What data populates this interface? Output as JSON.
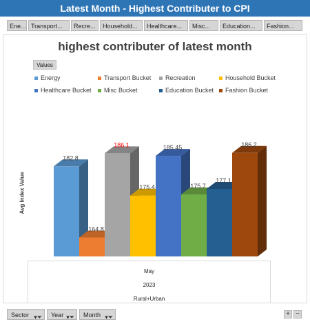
{
  "window": {
    "title": "Latest Month - Highest Contributer to CPI"
  },
  "slicer_buttons": [
    "Ene...",
    "Transport...",
    "Recre...",
    "Household...",
    "Healthcare...",
    "Misc...",
    "Education...",
    "Fashion..."
  ],
  "values_label": "Values",
  "axis_values": {
    "month": "May",
    "year": "2023",
    "sector": "Rural+Urban"
  },
  "field_buttons": {
    "sector": "Sector",
    "year": "Year",
    "month": "Month"
  },
  "zoom": {
    "plus": "+",
    "minus": "−"
  },
  "icons": {
    "filter": "filter-dropdown-icon"
  },
  "chart_data": {
    "type": "bar",
    "title": "highest contributer of latest month",
    "ylabel": "Avg Index Value",
    "legend_placement": "top",
    "series": [
      {
        "name": "Energy",
        "value": 182.8,
        "label": "182.8",
        "color": "#5b9bd5"
      },
      {
        "name": "Transport Bucket",
        "value": 164.8,
        "label": "164.8",
        "color": "#ed7d31"
      },
      {
        "name": "Recreation",
        "value": 186.1,
        "label": "186.1",
        "color": "#a5a5a5",
        "label_color": "#ff0000"
      },
      {
        "name": "Household Bucket",
        "value": 175.4,
        "label": "175.4",
        "color": "#ffc000"
      },
      {
        "name": "Healthcare Bucket",
        "value": 185.45,
        "label": "185.45",
        "color": "#4472c4"
      },
      {
        "name": "Misc Bucket",
        "value": 175.7,
        "label": "175.7",
        "color": "#70ad47"
      },
      {
        "name": "Education Bucket",
        "value": 177.1,
        "label": "177.1",
        "color": "#255e91"
      },
      {
        "name": "Fashion Bucket",
        "value": 186.2,
        "label": "186.2",
        "color": "#9e480e"
      }
    ]
  }
}
